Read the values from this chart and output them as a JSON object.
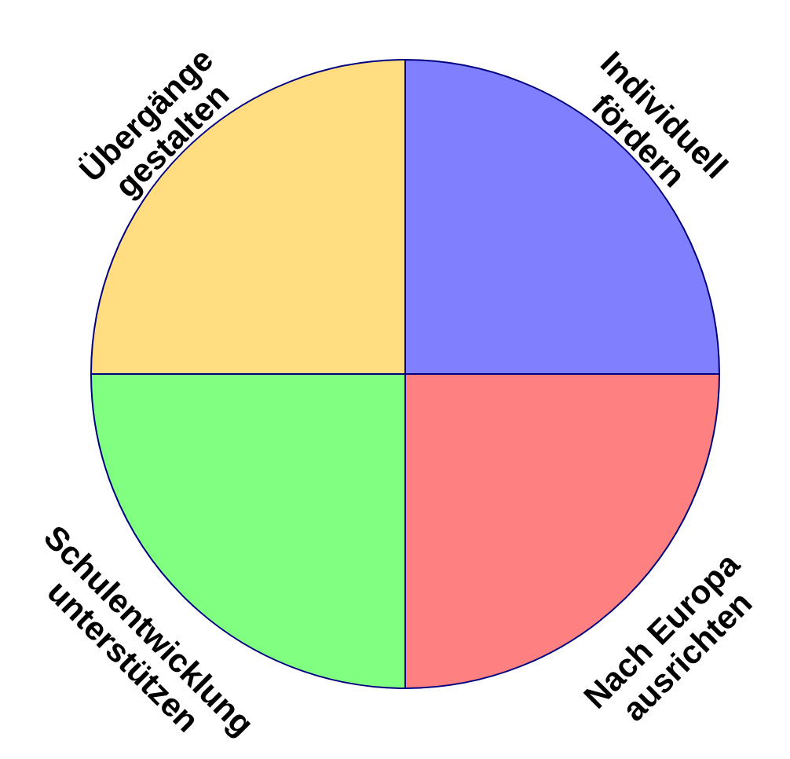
{
  "chart_data": {
    "type": "pie",
    "categories": [
      "Individuell fördern",
      "Nach Europa ausrichten",
      "Schulentwicklung unterstützen",
      "Übergänge gestalten"
    ],
    "values": [
      25,
      25,
      25,
      25
    ],
    "colors": [
      "#8080ff",
      "#ff8080",
      "#80ff80",
      "#ffdd80"
    ]
  }
}
